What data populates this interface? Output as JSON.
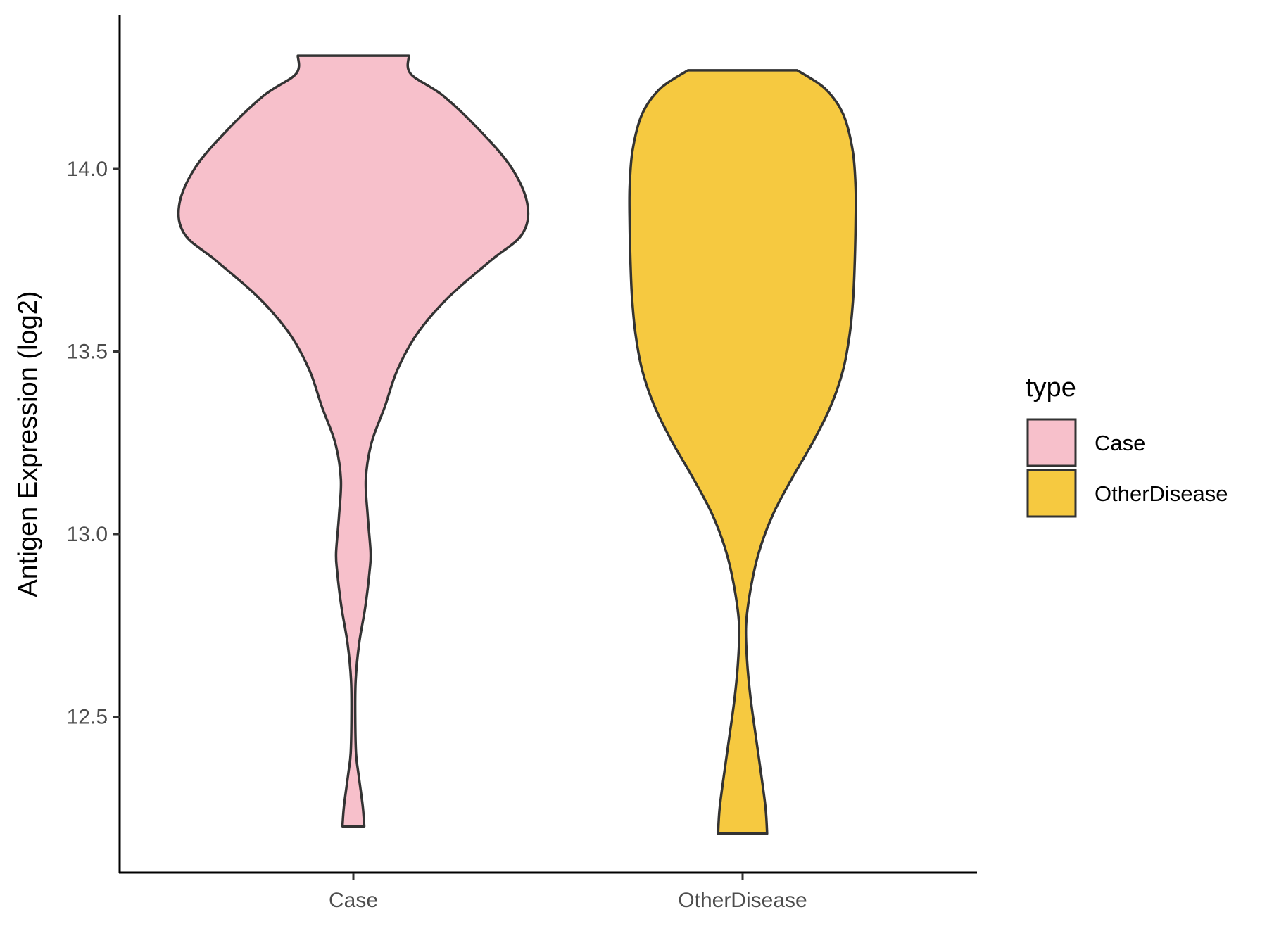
{
  "chart_data": {
    "type": "violin",
    "title": "",
    "xlabel": "",
    "ylabel": "Antigen Expression (log2)",
    "categories": [
      "Case",
      "OtherDisease"
    ],
    "ylim": [
      12.08,
      14.42
    ],
    "yticks": [
      "12.5",
      "13.0",
      "13.5",
      "14.0"
    ],
    "legend": {
      "title": "type",
      "placement": "right",
      "entries": [
        {
          "label": "Case",
          "color": "#f7c0cb"
        },
        {
          "label": "OtherDisease",
          "color": "#f6c940"
        }
      ]
    },
    "series": [
      {
        "name": "Case",
        "color": "#f7c0cb",
        "min": 12.2,
        "max": 14.31,
        "density": [
          [
            12.2,
            0.057
          ],
          [
            12.25,
            0.05
          ],
          [
            12.3,
            0.038
          ],
          [
            12.35,
            0.025
          ],
          [
            12.4,
            0.014
          ],
          [
            12.5,
            0.01
          ],
          [
            12.6,
            0.012
          ],
          [
            12.7,
            0.03
          ],
          [
            12.8,
            0.062
          ],
          [
            12.9,
            0.085
          ],
          [
            12.95,
            0.09
          ],
          [
            13.05,
            0.075
          ],
          [
            13.15,
            0.065
          ],
          [
            13.25,
            0.095
          ],
          [
            13.35,
            0.165
          ],
          [
            13.45,
            0.23
          ],
          [
            13.55,
            0.335
          ],
          [
            13.65,
            0.5
          ],
          [
            13.75,
            0.72
          ],
          [
            13.82,
            0.88
          ],
          [
            13.9,
            0.91
          ],
          [
            14.0,
            0.83
          ],
          [
            14.1,
            0.67
          ],
          [
            14.2,
            0.47
          ],
          [
            14.26,
            0.3
          ],
          [
            14.31,
            0.29
          ]
        ]
      },
      {
        "name": "OtherDisease",
        "color": "#f6c940",
        "min": 12.18,
        "max": 14.27,
        "density": [
          [
            12.18,
            0.128
          ],
          [
            12.25,
            0.12
          ],
          [
            12.35,
            0.095
          ],
          [
            12.45,
            0.068
          ],
          [
            12.55,
            0.042
          ],
          [
            12.65,
            0.024
          ],
          [
            12.75,
            0.018
          ],
          [
            12.85,
            0.042
          ],
          [
            12.95,
            0.085
          ],
          [
            13.05,
            0.155
          ],
          [
            13.15,
            0.255
          ],
          [
            13.25,
            0.365
          ],
          [
            13.35,
            0.46
          ],
          [
            13.45,
            0.525
          ],
          [
            13.55,
            0.56
          ],
          [
            13.65,
            0.578
          ],
          [
            13.75,
            0.586
          ],
          [
            13.85,
            0.59
          ],
          [
            13.95,
            0.59
          ],
          [
            14.05,
            0.575
          ],
          [
            14.15,
            0.525
          ],
          [
            14.22,
            0.43
          ],
          [
            14.27,
            0.285
          ]
        ]
      }
    ]
  }
}
